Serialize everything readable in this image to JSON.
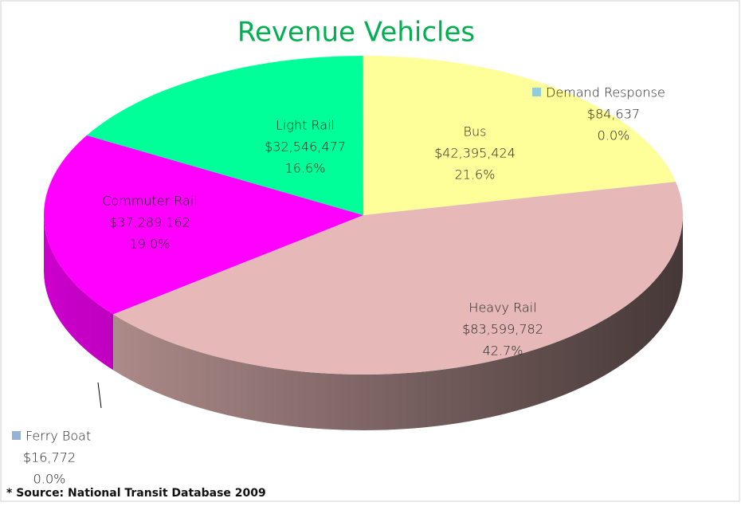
{
  "chart_data": {
    "type": "pie",
    "title": "Revenue Vehicles",
    "categories": [
      "Bus",
      "Heavy Rail",
      "Ferry Boat",
      "Commuter Rail",
      "Light Rail",
      "Demand Response"
    ],
    "values": [
      42395424,
      83599782,
      16772,
      37289162,
      32546477,
      84637
    ],
    "value_labels": [
      "$42,395,424",
      "$83,599,782",
      "$16,772",
      "$37,289,162",
      "$32,546,477",
      "$84,637"
    ],
    "percent_labels": [
      "21.6%",
      "42.7%",
      "0.0%",
      "19.0%",
      "16.6%",
      "0.0%"
    ],
    "colors": [
      "#ffff99",
      "#e6b9b8",
      "#95b3d7",
      "#ff00ff",
      "#00ff99",
      "#92cddc"
    ],
    "source": "* Source:  National Transit Database 2009"
  }
}
